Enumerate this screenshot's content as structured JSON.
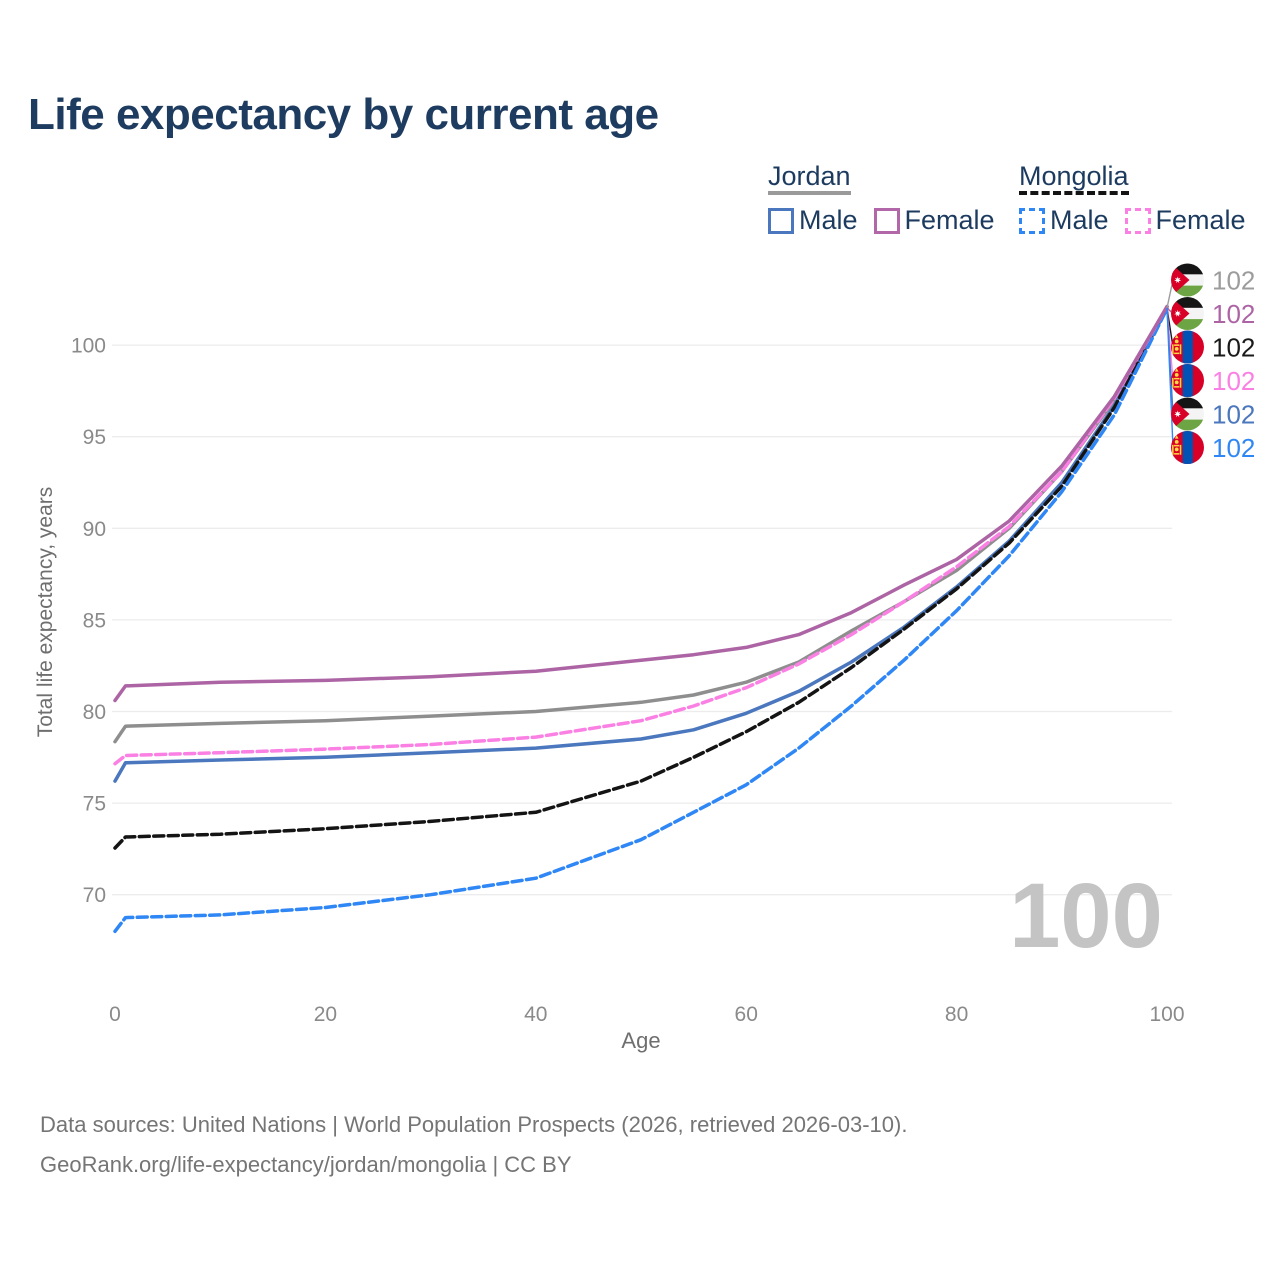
{
  "title": "Life expectancy by current age",
  "legend": {
    "groups": [
      {
        "label": "Jordan",
        "underline_style": "solid",
        "underline_color": "#9a9a9a",
        "items": [
          {
            "label": "Male",
            "color": "#4a77bd",
            "dashed": false
          },
          {
            "label": "Female",
            "color": "#b167a8",
            "dashed": false
          }
        ]
      },
      {
        "label": "Mongolia",
        "underline_style": "dashed",
        "underline_color": "#141414",
        "items": [
          {
            "label": "Male",
            "color": "#2f86f5",
            "dashed": true
          },
          {
            "label": "Female",
            "color": "#fb80e4",
            "dashed": true
          }
        ]
      }
    ]
  },
  "chart_data": {
    "type": "line",
    "title": "Life expectancy by current age",
    "xlabel": "Age",
    "ylabel": "Total life expectancy, years",
    "x_ticks": [
      0,
      20,
      40,
      60,
      80,
      100
    ],
    "y_ticks": [
      70,
      75,
      80,
      85,
      90,
      95,
      100
    ],
    "xlim": [
      0,
      100
    ],
    "ylim": [
      66,
      103
    ],
    "grid": "horizontal-only",
    "legend_position": "top-right",
    "watermark_current_age": "100",
    "x": [
      0,
      1,
      10,
      20,
      30,
      40,
      50,
      55,
      60,
      65,
      70,
      75,
      80,
      85,
      90,
      95,
      100
    ],
    "series": [
      {
        "name": "Jordan Female",
        "country": "Jordan",
        "sex": "Female",
        "color": "#ad64a5",
        "dash": "solid",
        "end_value_label": "102",
        "values": [
          80.6,
          81.4,
          81.6,
          81.7,
          81.9,
          82.2,
          82.8,
          83.1,
          83.5,
          84.2,
          85.4,
          86.9,
          88.3,
          90.4,
          93.4,
          97.2,
          102.1
        ]
      },
      {
        "name": "Jordan Both sexes",
        "country": "Jordan",
        "sex": "Both",
        "color": "#8e8e8e",
        "dash": "solid",
        "end_value_label": "102",
        "values": [
          78.35,
          79.2,
          79.35,
          79.5,
          79.75,
          80.0,
          80.5,
          80.9,
          81.6,
          82.7,
          84.4,
          86.0,
          87.7,
          90.0,
          93.1,
          97.0,
          102.1
        ]
      },
      {
        "name": "Jordan Male",
        "country": "Jordan",
        "sex": "Male",
        "color": "#4a77bd",
        "dash": "solid",
        "end_value_label": "102",
        "values": [
          76.2,
          77.2,
          77.35,
          77.5,
          77.75,
          78.0,
          78.5,
          79.0,
          79.9,
          81.1,
          82.7,
          84.6,
          86.8,
          89.3,
          92.5,
          96.7,
          102.0
        ]
      },
      {
        "name": "Mongolia Both sexes",
        "country": "Mongolia",
        "sex": "Both",
        "color": "#141414",
        "dash": "dashed",
        "end_value_label": "102",
        "values": [
          72.55,
          73.15,
          73.3,
          73.6,
          74.0,
          74.5,
          76.2,
          77.5,
          78.9,
          80.5,
          82.4,
          84.5,
          86.7,
          89.2,
          92.3,
          96.6,
          102.0
        ]
      },
      {
        "name": "Mongolia Female",
        "country": "Mongolia",
        "sex": "Female",
        "color": "#fb80e4",
        "dash": "dashed",
        "end_value_label": "102",
        "values": [
          77.15,
          77.6,
          77.75,
          77.95,
          78.2,
          78.6,
          79.5,
          80.3,
          81.3,
          82.6,
          84.2,
          86.0,
          87.9,
          90.1,
          93.1,
          97.1,
          102.1
        ]
      },
      {
        "name": "Mongolia Male",
        "country": "Mongolia",
        "sex": "Male",
        "color": "#2f86f5",
        "dash": "dashed",
        "end_value_label": "102",
        "values": [
          68.0,
          68.75,
          68.9,
          69.3,
          70.0,
          70.9,
          73.0,
          74.5,
          76.0,
          78.0,
          80.3,
          82.8,
          85.5,
          88.5,
          92.0,
          96.2,
          102.0
        ]
      }
    ],
    "end_labels": [
      {
        "flag": "jordan",
        "value": "102",
        "color": "#9c9c9c"
      },
      {
        "flag": "jordan",
        "value": "102",
        "color": "#ad64a5"
      },
      {
        "flag": "mongolia",
        "value": "102",
        "color": "#1a1a1a"
      },
      {
        "flag": "mongolia",
        "value": "102",
        "color": "#fb80e4"
      },
      {
        "flag": "jordan",
        "value": "102",
        "color": "#4a77bd"
      },
      {
        "flag": "mongolia",
        "value": "102",
        "color": "#2f86f5"
      }
    ]
  },
  "footer": {
    "line1": "Data sources: United Nations | World Population Prospects (2026, retrieved 2026-03-10).",
    "line2": "GeoRank.org/life-expectancy/jordan/mongolia | CC BY"
  }
}
